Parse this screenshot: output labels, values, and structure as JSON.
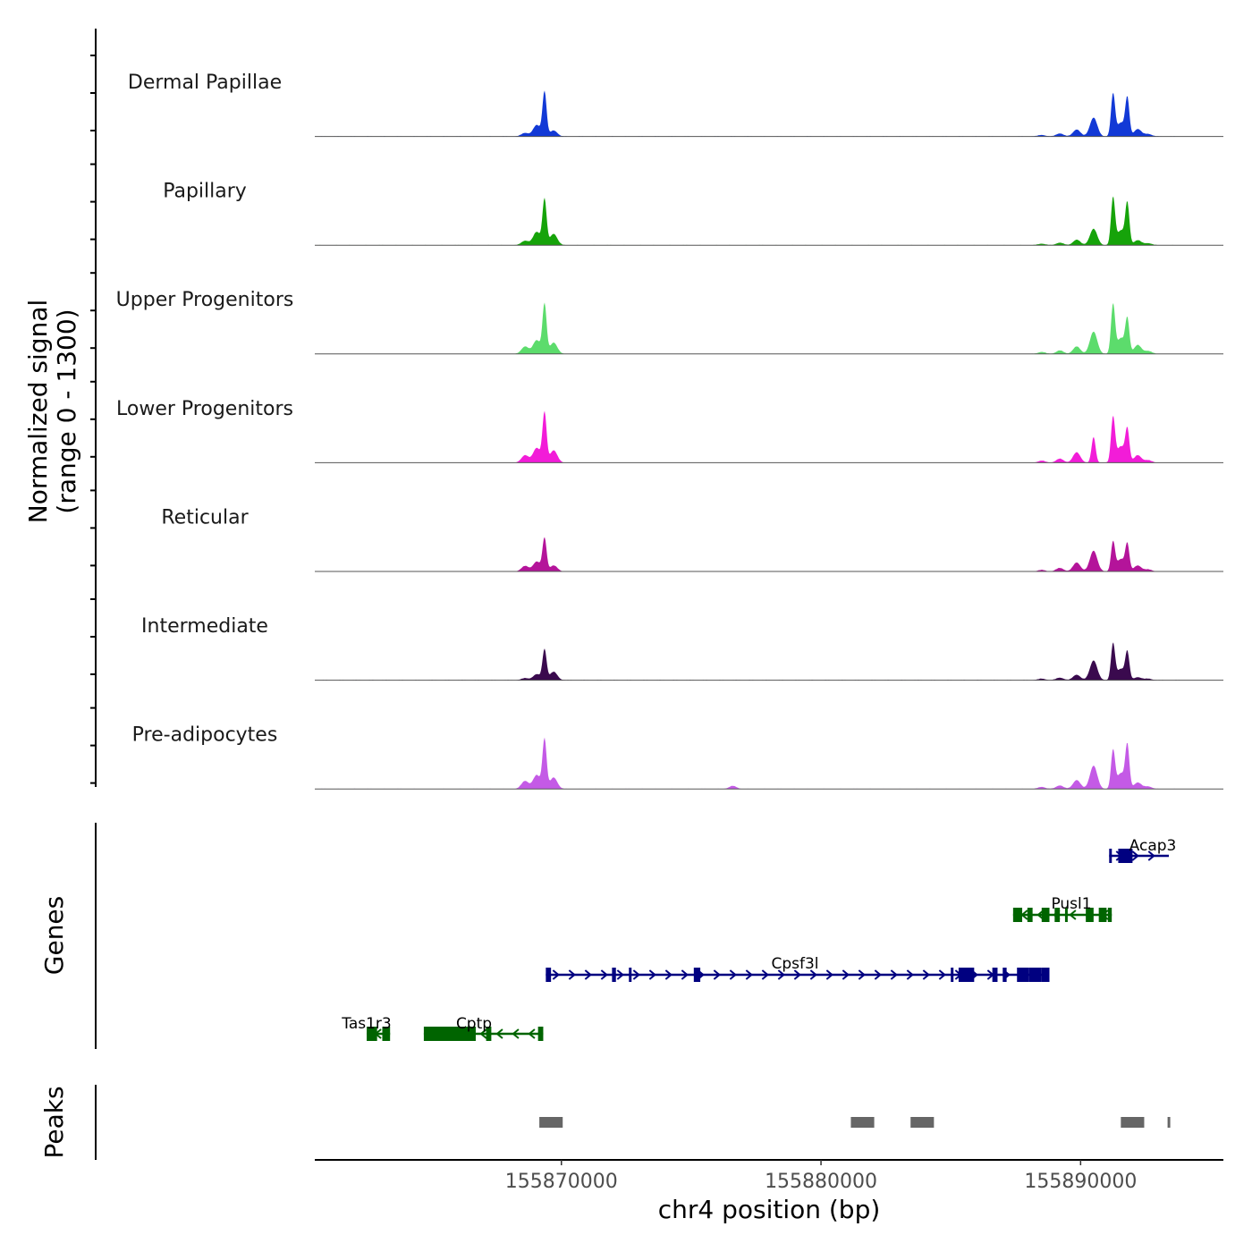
{
  "chart_data": {
    "type": "area",
    "chromosome": "chr4",
    "xlim": [
      155860500,
      155895500
    ],
    "signal_range": [
      0,
      1300
    ],
    "ylabel": "Normalized signal",
    "ylabel_range": "(range 0 - 1300)",
    "xlabel": "chr4 position (bp)",
    "x_ticks": [
      {
        "value": 155870000,
        "label": "155870000"
      },
      {
        "value": 155880000,
        "label": "155880000"
      },
      {
        "value": 155890000,
        "label": "155890000"
      }
    ],
    "coverage_tracks": [
      {
        "name": "Dermal Papillae",
        "color": "#1239d6",
        "peaks": [
          {
            "pos": 155868600,
            "h": 70
          },
          {
            "pos": 155869050,
            "h": 230
          },
          {
            "pos": 155869350,
            "h": 900
          },
          {
            "pos": 155869700,
            "h": 120
          },
          {
            "pos": 155888500,
            "h": 30
          },
          {
            "pos": 155889200,
            "h": 60
          },
          {
            "pos": 155889850,
            "h": 140
          },
          {
            "pos": 155890500,
            "h": 380
          },
          {
            "pos": 155891250,
            "h": 860
          },
          {
            "pos": 155891550,
            "h": 280
          },
          {
            "pos": 155891800,
            "h": 760
          },
          {
            "pos": 155892200,
            "h": 150
          },
          {
            "pos": 155892600,
            "h": 50
          }
        ]
      },
      {
        "name": "Papillary",
        "color": "#16a30a",
        "peaks": [
          {
            "pos": 155868600,
            "h": 90
          },
          {
            "pos": 155869050,
            "h": 270
          },
          {
            "pos": 155869350,
            "h": 920
          },
          {
            "pos": 155869700,
            "h": 230
          },
          {
            "pos": 155888500,
            "h": 30
          },
          {
            "pos": 155889200,
            "h": 50
          },
          {
            "pos": 155889850,
            "h": 110
          },
          {
            "pos": 155890500,
            "h": 330
          },
          {
            "pos": 155891250,
            "h": 960
          },
          {
            "pos": 155891550,
            "h": 300
          },
          {
            "pos": 155891800,
            "h": 830
          },
          {
            "pos": 155892200,
            "h": 100
          },
          {
            "pos": 155892600,
            "h": 40
          }
        ]
      },
      {
        "name": "Upper Progenitors",
        "color": "#5cdc6c",
        "peaks": [
          {
            "pos": 155868600,
            "h": 150
          },
          {
            "pos": 155869050,
            "h": 280
          },
          {
            "pos": 155869350,
            "h": 1000
          },
          {
            "pos": 155869700,
            "h": 230
          },
          {
            "pos": 155888500,
            "h": 40
          },
          {
            "pos": 155889200,
            "h": 70
          },
          {
            "pos": 155889850,
            "h": 150
          },
          {
            "pos": 155890500,
            "h": 450
          },
          {
            "pos": 155891250,
            "h": 1000
          },
          {
            "pos": 155891550,
            "h": 320
          },
          {
            "pos": 155891800,
            "h": 690
          },
          {
            "pos": 155892200,
            "h": 180
          },
          {
            "pos": 155892600,
            "h": 60
          }
        ]
      },
      {
        "name": "Lower Progenitors",
        "color": "#f21cd8",
        "peaks": [
          {
            "pos": 155868600,
            "h": 150
          },
          {
            "pos": 155869050,
            "h": 300
          },
          {
            "pos": 155869350,
            "h": 1000
          },
          {
            "pos": 155869700,
            "h": 250
          },
          {
            "pos": 155888500,
            "h": 40
          },
          {
            "pos": 155889200,
            "h": 80
          },
          {
            "pos": 155889850,
            "h": 210
          },
          {
            "pos": 155890500,
            "h": 520
          },
          {
            "pos": 155891250,
            "h": 920
          },
          {
            "pos": 155891550,
            "h": 330
          },
          {
            "pos": 155891800,
            "h": 660
          },
          {
            "pos": 155892200,
            "h": 150
          },
          {
            "pos": 155892600,
            "h": 50
          }
        ]
      },
      {
        "name": "Reticular",
        "color": "#b4149a",
        "peaks": [
          {
            "pos": 155868600,
            "h": 110
          },
          {
            "pos": 155869050,
            "h": 200
          },
          {
            "pos": 155869350,
            "h": 670
          },
          {
            "pos": 155869700,
            "h": 120
          },
          {
            "pos": 155888500,
            "h": 30
          },
          {
            "pos": 155889200,
            "h": 70
          },
          {
            "pos": 155889850,
            "h": 180
          },
          {
            "pos": 155890500,
            "h": 420
          },
          {
            "pos": 155891250,
            "h": 600
          },
          {
            "pos": 155891550,
            "h": 250
          },
          {
            "pos": 155891800,
            "h": 540
          },
          {
            "pos": 155892200,
            "h": 120
          },
          {
            "pos": 155892600,
            "h": 40
          }
        ]
      },
      {
        "name": "Intermediate",
        "color": "#3a0a4e",
        "peaks": [
          {
            "pos": 155868600,
            "h": 40
          },
          {
            "pos": 155869050,
            "h": 120
          },
          {
            "pos": 155869350,
            "h": 620
          },
          {
            "pos": 155869700,
            "h": 170
          },
          {
            "pos": 155888500,
            "h": 30
          },
          {
            "pos": 155889200,
            "h": 50
          },
          {
            "pos": 155889850,
            "h": 110
          },
          {
            "pos": 155890500,
            "h": 400
          },
          {
            "pos": 155891250,
            "h": 740
          },
          {
            "pos": 155891550,
            "h": 230
          },
          {
            "pos": 155891800,
            "h": 560
          },
          {
            "pos": 155892200,
            "h": 60
          },
          {
            "pos": 155892600,
            "h": 30
          }
        ]
      },
      {
        "name": "Pre-adipocytes",
        "color": "#c45ae6",
        "peaks": [
          {
            "pos": 155868600,
            "h": 160
          },
          {
            "pos": 155869050,
            "h": 280
          },
          {
            "pos": 155869350,
            "h": 1000
          },
          {
            "pos": 155869700,
            "h": 230
          },
          {
            "pos": 155876600,
            "h": 60
          },
          {
            "pos": 155888500,
            "h": 40
          },
          {
            "pos": 155889200,
            "h": 70
          },
          {
            "pos": 155889850,
            "h": 180
          },
          {
            "pos": 155890500,
            "h": 470
          },
          {
            "pos": 155891250,
            "h": 780
          },
          {
            "pos": 155891550,
            "h": 320
          },
          {
            "pos": 155891800,
            "h": 870
          },
          {
            "pos": 155892200,
            "h": 130
          },
          {
            "pos": 155892600,
            "h": 50
          }
        ]
      }
    ],
    "genes_title": "Genes",
    "genes": [
      {
        "name": "Acap3",
        "strand": "+",
        "color": "#000080",
        "row": 0,
        "start": 155891100,
        "end": 155893400,
        "exons": [
          [
            155891100,
            155891200
          ],
          [
            155891450,
            155892000
          ]
        ]
      },
      {
        "name": "Pusl1",
        "strand": "-",
        "color": "#006400",
        "row": 1,
        "start": 155887400,
        "end": 155891200,
        "exons": [
          [
            155887400,
            155887750
          ],
          [
            155887950,
            155888150
          ],
          [
            155888500,
            155888800
          ],
          [
            155889000,
            155889200
          ],
          [
            155889400,
            155889500
          ],
          [
            155890200,
            155890500
          ],
          [
            155890700,
            155891000
          ],
          [
            155891050,
            155891200
          ]
        ]
      },
      {
        "name": "Cpsf3l",
        "strand": "+",
        "color": "#000080",
        "row": 2,
        "start": 155869400,
        "end": 155888800,
        "exons": [
          [
            155869400,
            155869600
          ],
          [
            155871950,
            155872100
          ],
          [
            155872600,
            155872700
          ],
          [
            155875100,
            155875350
          ],
          [
            155885000,
            155885100
          ],
          [
            155885300,
            155885900
          ],
          [
            155886600,
            155886800
          ],
          [
            155887000,
            155887150
          ],
          [
            155887550,
            155888000
          ],
          [
            155888000,
            155888500
          ],
          [
            155888500,
            155888800
          ]
        ]
      },
      {
        "name": "Tas1r3",
        "strand": "-",
        "color": "#006400",
        "row": 3,
        "start": 155862500,
        "end": 155863400,
        "exons": [
          [
            155862500,
            155862900
          ],
          [
            155863100,
            155863400
          ]
        ]
      },
      {
        "name": "Cptp",
        "strand": "-",
        "color": "#006400",
        "row": 3,
        "start": 155864700,
        "end": 155869300,
        "exons": [
          [
            155864700,
            155866700
          ],
          [
            155867100,
            155867300
          ],
          [
            155869100,
            155869300
          ]
        ]
      }
    ],
    "peaks_title": "Peaks",
    "peak_regions": [
      [
        155869150,
        155870050
      ],
      [
        155881150,
        155882050
      ],
      [
        155883450,
        155884350
      ],
      [
        155891550,
        155892450
      ],
      [
        155893350,
        155893450
      ]
    ]
  }
}
